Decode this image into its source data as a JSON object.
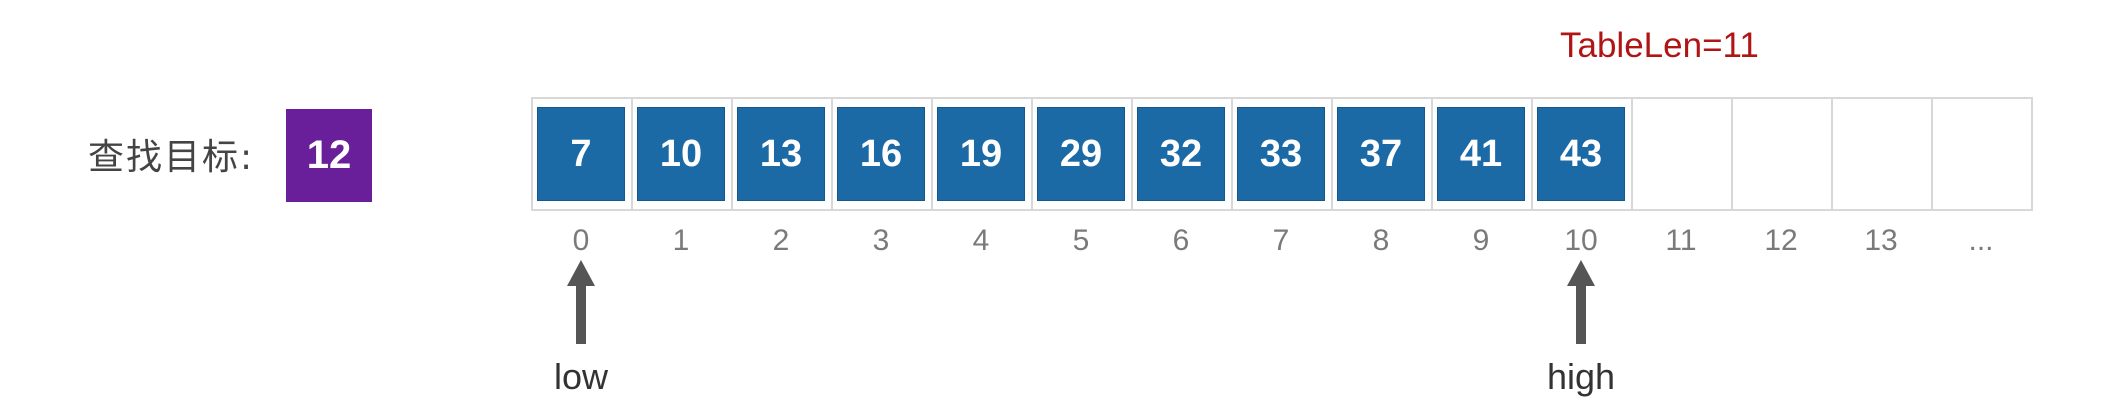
{
  "target": {
    "label": "查找目标:",
    "value": "12"
  },
  "table_len_label": "TableLen=11",
  "colors": {
    "cell": "#1b6aa6",
    "target": "#6a1f9a",
    "table_len": "#b01515",
    "arrow": "#555555"
  },
  "cells": [
    7,
    10,
    13,
    16,
    19,
    29,
    32,
    33,
    37,
    41,
    43
  ],
  "indices": [
    "0",
    "1",
    "2",
    "3",
    "4",
    "5",
    "6",
    "7",
    "8",
    "9",
    "10",
    "11",
    "12",
    "13",
    "..."
  ],
  "pointers": [
    {
      "name": "low",
      "label": "low",
      "index": 0
    },
    {
      "name": "high",
      "label": "high",
      "index": 10
    }
  ]
}
